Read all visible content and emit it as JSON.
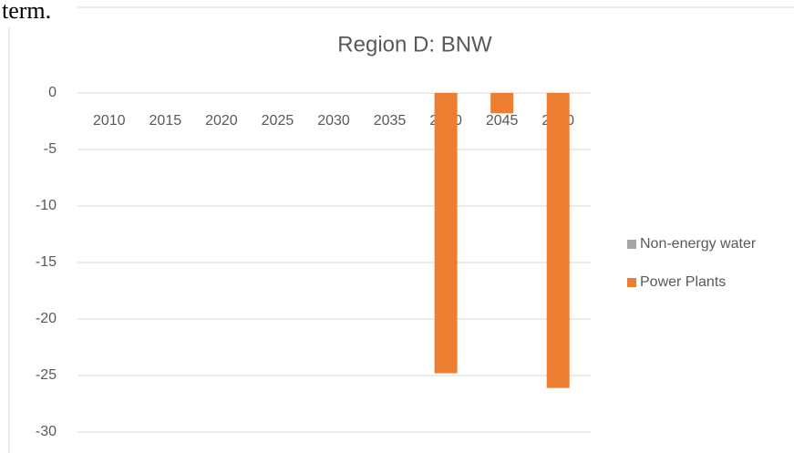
{
  "page_fragment": "term.",
  "chart_data": {
    "type": "bar",
    "title": "Region D: BNW",
    "categories": [
      "2010",
      "2015",
      "2020",
      "2025",
      "2030",
      "2035",
      "2040",
      "2045",
      "2050"
    ],
    "series": [
      {
        "name": "Non-energy water",
        "color": "#a5a5a5",
        "values": [
          0,
          0,
          0,
          0,
          0,
          0,
          0,
          0,
          0
        ]
      },
      {
        "name": "Power Plants",
        "color": "#ed7d31",
        "values": [
          0,
          0,
          0,
          0,
          0,
          0,
          -24.8,
          -1.8,
          -26.1
        ]
      }
    ],
    "ylim": [
      -30,
      0
    ],
    "yticks": [
      0,
      -5,
      -10,
      -15,
      -20,
      -25,
      -30
    ],
    "grid": true,
    "legend": "right"
  }
}
